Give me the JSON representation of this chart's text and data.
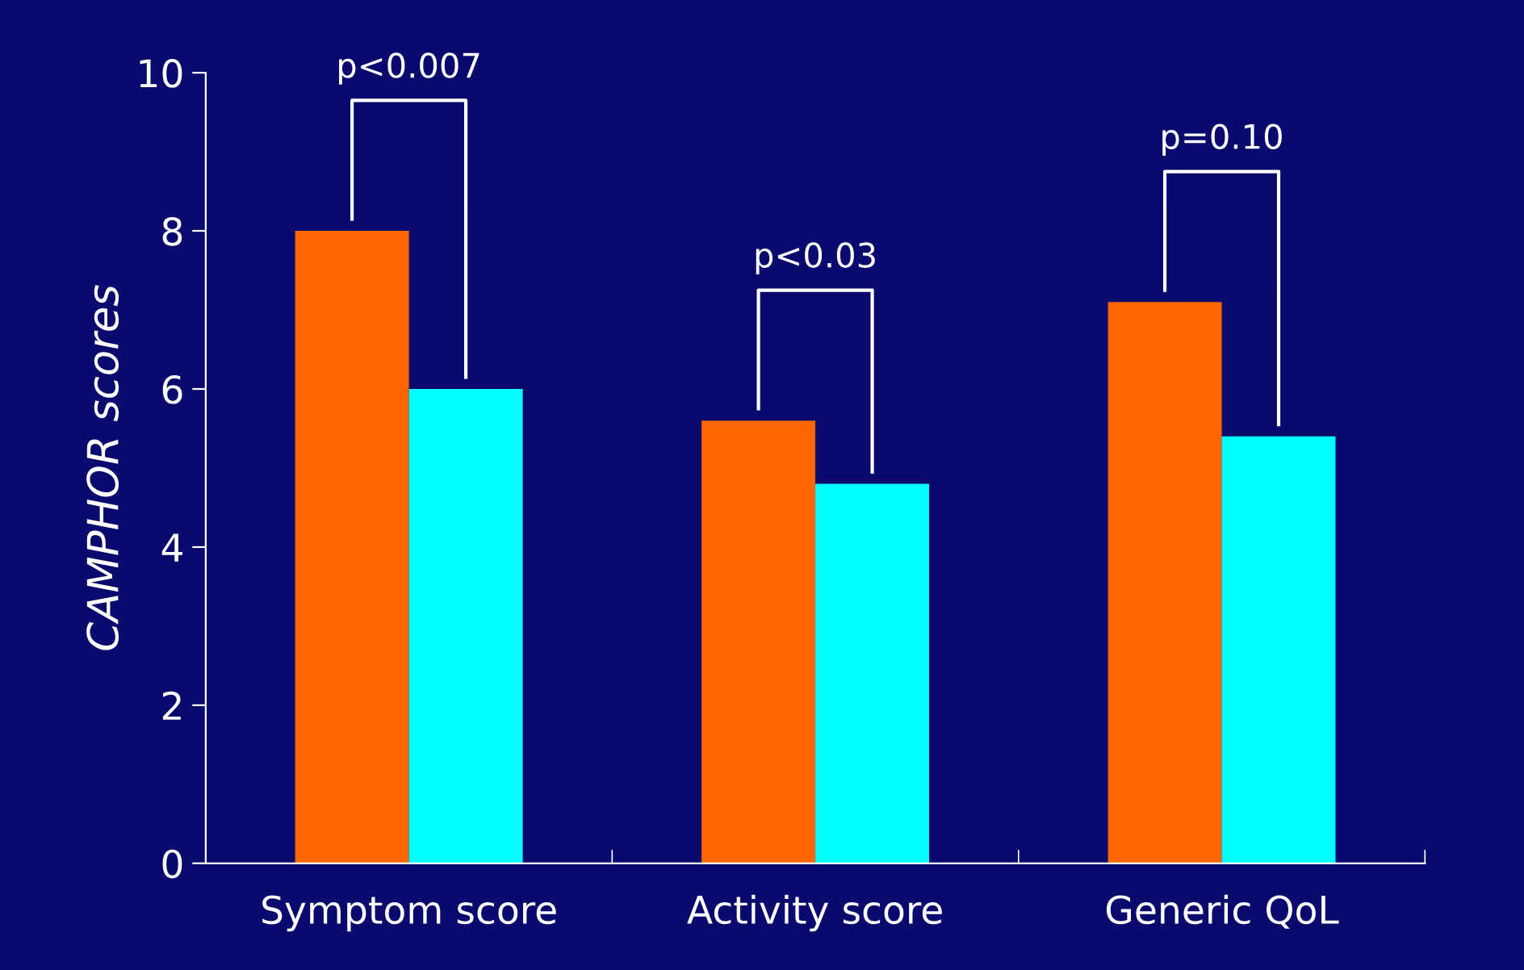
{
  "chart_data": {
    "type": "bar",
    "ylabel": "CAMPHOR scores",
    "categories": [
      "Symptom score",
      "Activity score",
      "Generic QoL"
    ],
    "series": [
      {
        "color": "#ff6600",
        "values": [
          8.0,
          5.6,
          7.1
        ]
      },
      {
        "color": "#00ffff",
        "values": [
          6.0,
          4.8,
          5.4
        ]
      }
    ],
    "ylim": [
      0,
      10
    ],
    "yticks": [
      0,
      2,
      4,
      6,
      8,
      10
    ],
    "grid": false,
    "legend": false,
    "annotations": [
      "p<0.007",
      "p<0.03",
      "p=0.10"
    ]
  }
}
